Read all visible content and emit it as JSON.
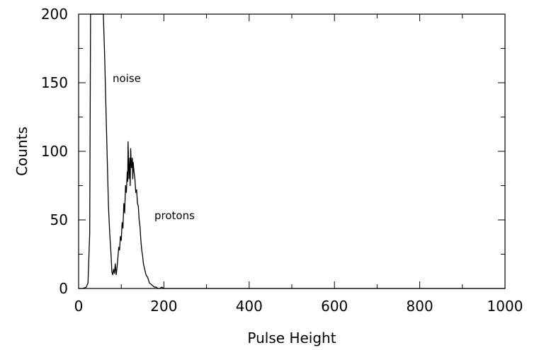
{
  "chart_data": {
    "type": "line",
    "title": "",
    "xlabel": "Pulse Height",
    "ylabel": "Counts",
    "xlim": [
      0,
      1000
    ],
    "ylim": [
      0,
      200
    ],
    "x_ticks": [
      0,
      200,
      400,
      600,
      800,
      1000
    ],
    "y_ticks": [
      0,
      50,
      100,
      150,
      200
    ],
    "x_tick_labels": [
      "0",
      "200",
      "400",
      "600",
      "800",
      "1000"
    ],
    "y_tick_labels": [
      "0",
      "50",
      "100",
      "150",
      "200"
    ],
    "grid": false,
    "legend": "none",
    "annotations": [
      {
        "text": "noise",
        "x": 80,
        "y": 150
      },
      {
        "text": "protons",
        "x": 180,
        "y": 50
      }
    ],
    "series": [
      {
        "x": [
          0,
          10,
          18,
          22,
          26,
          28,
          30,
          33,
          37,
          42,
          48,
          55,
          58,
          61,
          65,
          70,
          73,
          76,
          78,
          80,
          82,
          84,
          86,
          88,
          90,
          92,
          94,
          96,
          98,
          100,
          102,
          104,
          106,
          108,
          110,
          112,
          114,
          115,
          116,
          118,
          120,
          121,
          122,
          124,
          126,
          127,
          128,
          130,
          132,
          134,
          136,
          138,
          140,
          142,
          144,
          146,
          148,
          150,
          152,
          155,
          158,
          162,
          166,
          170,
          174,
          178,
          182,
          186,
          190,
          195,
          200,
          210,
          220,
          240,
          260,
          280,
          300,
          350,
          400,
          450,
          500,
          550,
          600,
          650,
          700,
          800,
          900,
          1000
        ],
        "values": [
          0,
          0,
          1,
          4,
          40,
          200,
          200,
          200,
          200,
          200,
          200,
          200,
          200,
          170,
          120,
          60,
          40,
          25,
          12,
          10,
          14,
          11,
          18,
          10,
          15,
          22,
          30,
          28,
          38,
          35,
          48,
          44,
          62,
          55,
          75,
          70,
          85,
          78,
          107,
          80,
          95,
          75,
          102,
          88,
          95,
          80,
          92,
          85,
          80,
          70,
          72,
          62,
          60,
          50,
          45,
          35,
          28,
          24,
          18,
          14,
          10,
          8,
          4,
          3,
          2,
          1,
          1,
          0,
          0,
          1,
          0,
          0,
          0,
          0,
          0,
          0,
          0,
          0,
          0,
          0,
          0,
          0,
          0,
          0,
          0,
          0,
          0,
          0
        ]
      }
    ]
  }
}
